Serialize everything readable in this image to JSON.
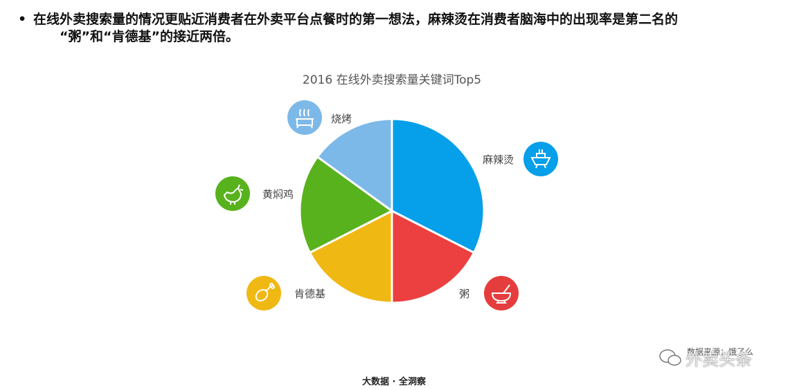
{
  "bullet": {
    "symbol": "•",
    "line1": "在线外卖搜索量的情况更贴近消费者在外卖平台点餐时的第一想法，麻辣烫在消费者脑海中的出现率是第二名的",
    "line2": "“粥”和“肯德基”的接近两倍。"
  },
  "chart_data": {
    "type": "pie",
    "title": "2016 在线外卖搜索量关键词Top5",
    "slices": [
      {
        "label": "麻辣烫",
        "value": 32.5,
        "color": "#069fe9",
        "icon": "hotpot-bowl-icon"
      },
      {
        "label": "粥",
        "value": 17.5,
        "color": "#ec3f3f",
        "icon": "porridge-bowl-icon"
      },
      {
        "label": "肯德基",
        "value": 17.5,
        "color": "#f0b813",
        "icon": "drumstick-icon"
      },
      {
        "label": "黄焖鸡",
        "value": 17.5,
        "color": "#58b21d",
        "icon": "chicken-icon"
      },
      {
        "label": "烧烤",
        "value": 15.0,
        "color": "#7db9e8",
        "icon": "grill-icon"
      }
    ],
    "legend": "none"
  },
  "footer": "大数据 · 全洞察",
  "source": "数据来源：饿了么",
  "watermark": "外卖头条"
}
